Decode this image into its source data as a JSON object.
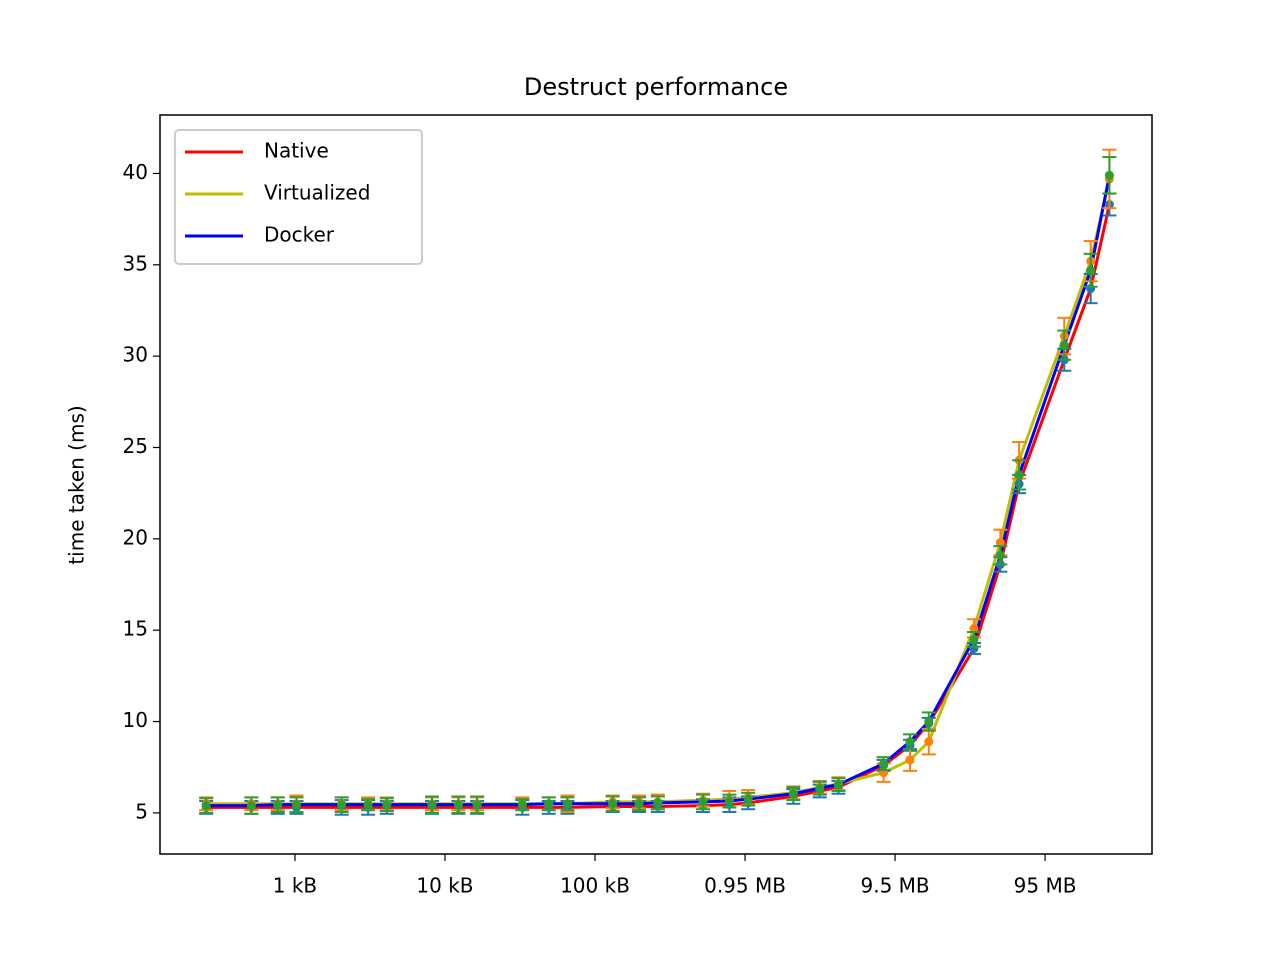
{
  "chart_data": {
    "type": "errorbar_line",
    "title": "Destruct performance",
    "ylabel": "time taken (ms)",
    "x": [
      256,
      512,
      768,
      1024,
      2048,
      3072,
      4096,
      8192,
      12288,
      16384,
      32768,
      49152,
      65536,
      131072,
      196608,
      262144,
      524288,
      786432,
      1048576,
      2097152,
      3145728,
      4194304,
      8388608,
      12582912,
      16777216,
      33554432,
      50331648,
      67108864,
      134217728,
      201326592,
      268435456
    ],
    "xscale": "log",
    "xlim": [
      126,
      516000000
    ],
    "xticks": [
      {
        "value": 1000,
        "label": "1 kB"
      },
      {
        "value": 10000,
        "label": "10 kB"
      },
      {
        "value": 100000,
        "label": "100 kB"
      },
      {
        "value": 1000000,
        "label": "0.95 MB"
      },
      {
        "value": 10000000,
        "label": "9.5 MB"
      },
      {
        "value": 100000000,
        "label": "95 MB"
      }
    ],
    "ylim": [
      2.75,
      43.2
    ],
    "yticks": [
      5,
      10,
      15,
      20,
      25,
      30,
      35,
      40
    ],
    "legend": "upper left",
    "series": [
      {
        "name": "Native",
        "color": "#ff0000",
        "errorbar_color": "#1f77b4",
        "values": [
          5.3,
          5.3,
          5.3,
          5.3,
          5.3,
          5.3,
          5.3,
          5.3,
          5.3,
          5.3,
          5.3,
          5.3,
          5.3,
          5.35,
          5.35,
          5.35,
          5.4,
          5.45,
          5.55,
          5.9,
          6.2,
          6.4,
          7.6,
          8.7,
          9.9,
          14.0,
          18.6,
          23.0,
          29.8,
          33.7,
          38.3
        ],
        "errors": [
          0.35,
          0.35,
          0.35,
          0.35,
          0.4,
          0.4,
          0.35,
          0.35,
          0.35,
          0.35,
          0.4,
          0.35,
          0.35,
          0.3,
          0.3,
          0.3,
          0.35,
          0.4,
          0.35,
          0.4,
          0.35,
          0.35,
          0.3,
          0.3,
          0.3,
          0.3,
          0.4,
          0.5,
          0.6,
          0.8,
          0.6
        ]
      },
      {
        "name": "Virtualized",
        "color": "#bfbf00",
        "errorbar_color": "#ff7f0e",
        "values": [
          5.5,
          5.5,
          5.5,
          5.5,
          5.5,
          5.5,
          5.5,
          5.5,
          5.5,
          5.5,
          5.5,
          5.5,
          5.5,
          5.6,
          5.6,
          5.6,
          5.7,
          5.75,
          5.85,
          6.1,
          6.4,
          6.6,
          7.2,
          7.9,
          8.9,
          15.1,
          19.8,
          24.3,
          31.1,
          35.2,
          39.7
        ],
        "errors": [
          0.35,
          0.35,
          0.35,
          0.45,
          0.35,
          0.35,
          0.35,
          0.35,
          0.35,
          0.35,
          0.35,
          0.35,
          0.45,
          0.35,
          0.35,
          0.4,
          0.35,
          0.45,
          0.4,
          0.35,
          0.35,
          0.35,
          0.5,
          0.6,
          0.7,
          0.5,
          0.7,
          1.0,
          1.0,
          1.1,
          1.6
        ]
      },
      {
        "name": "Docker",
        "color": "#0000ff",
        "errorbar_color": "#2ca02c",
        "values": [
          5.4,
          5.4,
          5.45,
          5.45,
          5.45,
          5.45,
          5.45,
          5.45,
          5.45,
          5.45,
          5.45,
          5.5,
          5.5,
          5.5,
          5.5,
          5.55,
          5.6,
          5.65,
          5.75,
          6.05,
          6.35,
          6.55,
          7.7,
          8.9,
          10.0,
          14.5,
          19.1,
          23.5,
          30.6,
          34.7,
          39.9
        ],
        "errors": [
          0.4,
          0.45,
          0.4,
          0.4,
          0.4,
          0.3,
          0.35,
          0.45,
          0.45,
          0.45,
          0.3,
          0.35,
          0.35,
          0.4,
          0.35,
          0.35,
          0.4,
          0.35,
          0.35,
          0.35,
          0.35,
          0.35,
          0.35,
          0.4,
          0.5,
          0.4,
          0.5,
          0.8,
          0.8,
          0.9,
          1.0
        ]
      }
    ]
  }
}
